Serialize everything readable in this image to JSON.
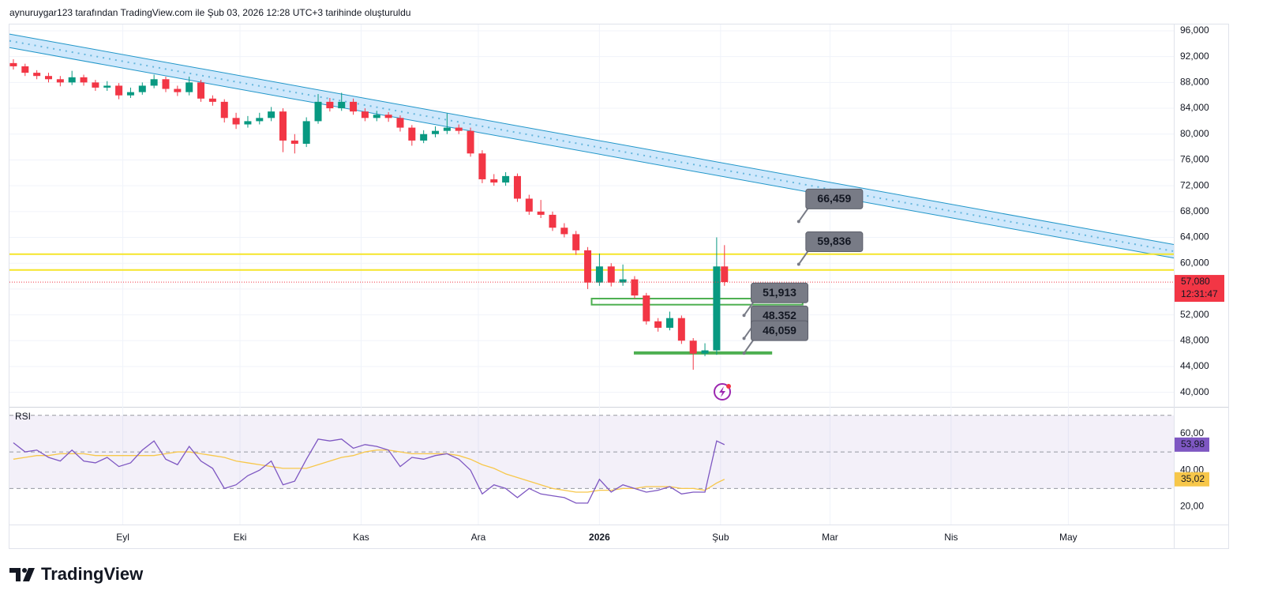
{
  "header": "aynuruygar123 tarafından TradingView.com ile Şub 03, 2026 12:28 UTC+3 tarihinde oluşturuldu",
  "footer": "TradingView",
  "chart_data": [
    {
      "type": "candlestick",
      "up_color": "#089981",
      "down_color": "#f23645",
      "grid": true,
      "xlim": [
        1,
        299
      ],
      "xticks": [
        {
          "value": 30,
          "label": "Eyl"
        },
        {
          "value": 60,
          "label": "Eki"
        },
        {
          "value": 91,
          "label": "Kas"
        },
        {
          "value": 121,
          "label": "Ara"
        },
        {
          "value": 152,
          "label": "2026"
        },
        {
          "value": 183,
          "label": "Şub"
        },
        {
          "value": 211,
          "label": "Mar"
        },
        {
          "value": 242,
          "label": "Nis"
        },
        {
          "value": 272,
          "label": "May"
        }
      ],
      "ylim": [
        38000,
        97100
      ],
      "yticks": [
        {
          "value": 40000,
          "label": "40,000"
        },
        {
          "value": 44000,
          "label": "44,000"
        },
        {
          "value": 48000,
          "label": "48,000"
        },
        {
          "value": 52000,
          "label": "52,000"
        },
        {
          "value": 56000,
          "label": "56,000"
        },
        {
          "value": 60000,
          "label": "60,000"
        },
        {
          "value": 64000,
          "label": "64,000"
        },
        {
          "value": 68000,
          "label": "68,000"
        },
        {
          "value": 72000,
          "label": "72,000"
        },
        {
          "value": 76000,
          "label": "76,000"
        },
        {
          "value": 80000,
          "label": "80,000"
        },
        {
          "value": 84000,
          "label": "84,000"
        },
        {
          "value": 88000,
          "label": "88,000"
        },
        {
          "value": 92000,
          "label": "92,000"
        },
        {
          "value": 96000,
          "label": "96,000"
        }
      ],
      "x": [
        2,
        5,
        8,
        11,
        14,
        17,
        20,
        23,
        26,
        29,
        32,
        35,
        38,
        41,
        44,
        47,
        50,
        53,
        56,
        59,
        62,
        65,
        68,
        71,
        74,
        77,
        80,
        83,
        86,
        89,
        92,
        95,
        98,
        101,
        104,
        107,
        110,
        113,
        116,
        119,
        122,
        125,
        128,
        131,
        134,
        137,
        140,
        143,
        146,
        149,
        152,
        155,
        158,
        161,
        164,
        167,
        170,
        173,
        176,
        179,
        182,
        184
      ],
      "ohlc": [
        [
          91000,
          91600,
          90000,
          90500
        ],
        [
          90500,
          90900,
          89000,
          89500
        ],
        [
          89500,
          89900,
          88500,
          89000
        ],
        [
          89000,
          89500,
          88000,
          88500
        ],
        [
          88500,
          89000,
          87400,
          88000
        ],
        [
          88000,
          89800,
          87600,
          88800
        ],
        [
          88800,
          89200,
          87500,
          88000
        ],
        [
          88000,
          88400,
          86700,
          87200
        ],
        [
          87200,
          88200,
          86700,
          87500
        ],
        [
          87500,
          87900,
          85400,
          86000
        ],
        [
          86000,
          87200,
          85600,
          86500
        ],
        [
          86500,
          88000,
          86100,
          87500
        ],
        [
          87500,
          89200,
          87100,
          88500
        ],
        [
          88500,
          88900,
          86500,
          87000
        ],
        [
          87000,
          87500,
          85900,
          86500
        ],
        [
          86500,
          88900,
          86000,
          88000
        ],
        [
          88000,
          88400,
          85000,
          85500
        ],
        [
          85500,
          86000,
          84400,
          85000
        ],
        [
          85000,
          85400,
          81800,
          82500
        ],
        [
          82500,
          83300,
          80800,
          81500
        ],
        [
          81500,
          82800,
          81000,
          82000
        ],
        [
          82000,
          83300,
          81500,
          82500
        ],
        [
          82500,
          84200,
          82000,
          83500
        ],
        [
          83500,
          84000,
          77200,
          79000
        ],
        [
          79000,
          80000,
          77000,
          78500
        ],
        [
          78500,
          82600,
          78000,
          82000
        ],
        [
          82000,
          86200,
          81600,
          85000
        ],
        [
          85000,
          85600,
          83500,
          84000
        ],
        [
          84000,
          86400,
          83600,
          85000
        ],
        [
          85000,
          85500,
          83000,
          83500
        ],
        [
          83500,
          84000,
          82000,
          82500
        ],
        [
          82500,
          83600,
          82000,
          83000
        ],
        [
          83000,
          83400,
          81900,
          82500
        ],
        [
          82500,
          82900,
          80400,
          81000
        ],
        [
          81000,
          81400,
          78200,
          79000
        ],
        [
          79000,
          80600,
          78600,
          80000
        ],
        [
          80000,
          81200,
          79500,
          80500
        ],
        [
          80500,
          83200,
          80000,
          81000
        ],
        [
          81000,
          81500,
          80000,
          80500
        ],
        [
          80500,
          81000,
          76500,
          77000
        ],
        [
          77000,
          77500,
          72400,
          73000
        ],
        [
          73000,
          73800,
          72000,
          72500
        ],
        [
          72500,
          74100,
          72000,
          73500
        ],
        [
          73500,
          73900,
          69500,
          70000
        ],
        [
          70000,
          70600,
          67500,
          68000
        ],
        [
          68000,
          69800,
          67000,
          67500
        ],
        [
          67500,
          68000,
          65000,
          65500
        ],
        [
          65500,
          66200,
          64000,
          64500
        ],
        [
          64500,
          65000,
          61300,
          62000
        ],
        [
          62000,
          62500,
          56000,
          57000
        ],
        [
          57000,
          61500,
          56500,
          59500
        ],
        [
          59500,
          60000,
          56400,
          57000
        ],
        [
          57000,
          59800,
          56500,
          57500
        ],
        [
          57500,
          58000,
          54500,
          55000
        ],
        [
          55000,
          55400,
          50500,
          51000
        ],
        [
          51000,
          51500,
          49400,
          50000
        ],
        [
          50000,
          52500,
          49600,
          51500
        ],
        [
          51500,
          51900,
          47500,
          48000
        ],
        [
          48000,
          48400,
          43500,
          46000
        ],
        [
          46000,
          47600,
          45600,
          46500
        ],
        [
          46500,
          64000,
          45800,
          59500
        ],
        [
          59500,
          62800,
          56500,
          57080
        ]
      ],
      "last_price_label": "57,080",
      "countdown": "12:31:47",
      "channel": {
        "x": [
          1,
          299
        ],
        "upper": [
          95500,
          62900
        ],
        "lower": [
          93400,
          60800
        ],
        "color": "#2196c8",
        "fill": "#bbdefb"
      },
      "hlines": [
        {
          "value": 61400,
          "color": "#f5e52a"
        },
        {
          "value": 58950,
          "color": "#f5e52a"
        }
      ],
      "zones": [
        {
          "x": [
            150,
            204
          ],
          "low": 53700,
          "high": 54400,
          "color": "#4caf50"
        },
        {
          "x": [
            161,
            196
          ],
          "low": 46100,
          "high": 46100,
          "color": "#4caf50"
        }
      ],
      "callouts": [
        {
          "x": 203,
          "value": 66459,
          "label": "66,459"
        },
        {
          "x": 203,
          "value": 59836,
          "label": "59,836"
        },
        {
          "x": 189,
          "value": 51913,
          "label": "51,913"
        },
        {
          "x": 189,
          "value": 48352,
          "label": "48.352"
        },
        {
          "x": 189,
          "value": 46059,
          "label": "46,059"
        }
      ]
    },
    {
      "type": "line",
      "title": "RSI",
      "ylim": [
        12,
        72.5
      ],
      "yticks": [
        {
          "value": 20,
          "label": "20,00"
        },
        {
          "value": 40,
          "label": "40,00"
        },
        {
          "value": 60,
          "label": "60,00"
        }
      ],
      "levels": [
        70,
        50,
        30
      ],
      "color": "#7e57c2",
      "ma_color": "#f7c74a",
      "values": [
        55,
        50,
        51,
        47,
        45,
        51,
        45,
        44,
        47,
        42,
        44,
        51,
        56,
        46,
        43,
        53,
        45,
        41,
        30,
        32,
        37,
        40,
        45,
        32,
        34,
        46,
        57,
        56,
        57,
        52,
        54,
        53,
        51,
        42,
        47,
        46,
        48,
        49,
        46,
        40,
        27,
        32,
        30,
        25,
        30,
        27,
        26,
        25,
        22,
        22,
        35,
        28,
        32,
        30,
        28,
        29,
        31,
        27,
        28,
        28,
        56,
        53.98
      ],
      "ma_values": [
        46,
        47,
        48,
        48,
        49,
        49,
        49,
        48,
        48,
        48,
        48,
        48,
        48,
        49,
        50,
        50,
        49,
        48,
        47,
        45,
        44,
        43,
        42,
        41,
        41,
        41,
        43,
        45,
        47,
        48,
        50,
        51,
        51,
        50,
        49,
        49,
        49,
        49,
        48,
        46,
        43,
        41,
        38,
        36,
        34,
        32,
        30,
        29,
        28,
        28,
        29,
        29,
        30,
        30,
        31,
        31,
        31,
        30,
        30,
        29,
        33,
        35.02
      ],
      "value_label": "53,98",
      "ma_value_label": "35,02"
    }
  ]
}
